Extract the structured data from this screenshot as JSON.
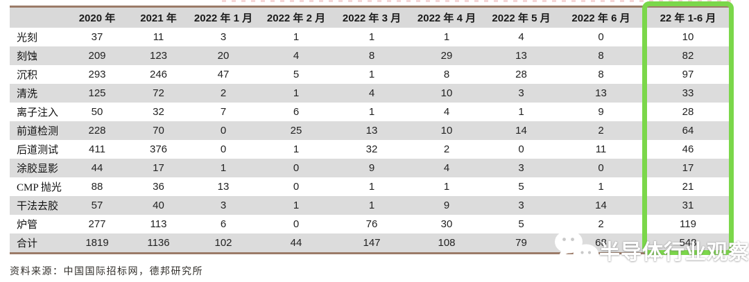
{
  "colors": {
    "header_bg": "#d9d9d9",
    "stripe_bg": "#dcdcdc",
    "rule_brown": "#9b7b68",
    "highlight_green": "#7bd74a",
    "watermark_text": "#ffffff"
  },
  "chart_data": {
    "type": "table",
    "columns": [
      "",
      "2020 年",
      "2021 年",
      "2022 年 1 月",
      "2022 年 2 月",
      "2022 年 3 月",
      "2022 年 4 月",
      "2022 年 5 月",
      "2022 年 6 月",
      "22 年 1-6 月"
    ],
    "rows": [
      {
        "label": "光刻",
        "values": [
          37,
          11,
          3,
          1,
          1,
          1,
          4,
          0,
          10
        ]
      },
      {
        "label": "刻蚀",
        "values": [
          209,
          123,
          20,
          4,
          8,
          29,
          13,
          8,
          82
        ]
      },
      {
        "label": "沉积",
        "values": [
          293,
          246,
          47,
          5,
          1,
          8,
          28,
          8,
          97
        ]
      },
      {
        "label": "清洗",
        "values": [
          125,
          72,
          2,
          1,
          4,
          10,
          3,
          13,
          33
        ]
      },
      {
        "label": "离子注入",
        "values": [
          50,
          32,
          7,
          6,
          1,
          4,
          1,
          9,
          28
        ]
      },
      {
        "label": "前道检测",
        "values": [
          228,
          70,
          0,
          25,
          13,
          10,
          14,
          2,
          64
        ]
      },
      {
        "label": "后道测试",
        "values": [
          411,
          376,
          0,
          1,
          32,
          2,
          0,
          11,
          46
        ]
      },
      {
        "label": "涂胶显影",
        "values": [
          44,
          17,
          1,
          0,
          9,
          4,
          3,
          0,
          17
        ]
      },
      {
        "label": "CMP 抛光",
        "values": [
          88,
          36,
          13,
          0,
          1,
          1,
          5,
          1,
          21
        ]
      },
      {
        "label": "干法去胶",
        "values": [
          57,
          40,
          3,
          1,
          1,
          9,
          3,
          14,
          31
        ]
      },
      {
        "label": "炉管",
        "values": [
          277,
          113,
          6,
          0,
          76,
          30,
          5,
          2,
          119
        ]
      },
      {
        "label": "合计",
        "values": [
          1819,
          1136,
          102,
          44,
          147,
          108,
          79,
          68,
          548
        ]
      }
    ],
    "highlighted_column": "22 年 1-6 月"
  },
  "watermark": {
    "icon": "wechat-icon",
    "text": "半导体行业观察"
  },
  "footer": {
    "source": "资料来源：中国国际招标网，德邦研究所"
  }
}
